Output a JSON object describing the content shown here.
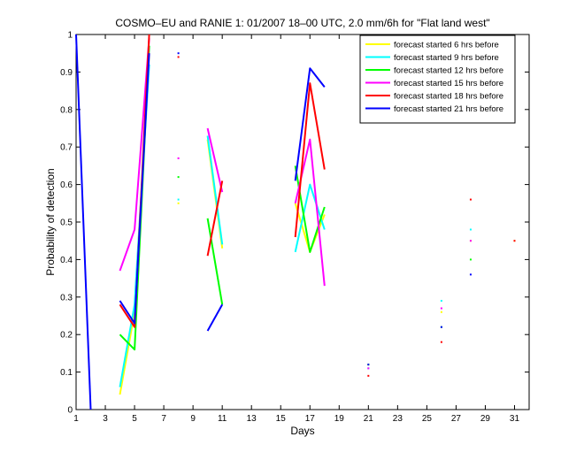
{
  "chart_data": {
    "type": "line",
    "title": "COSMO–EU and RANIE 1: 01/2007 18–00 UTC, 2.0 mm/6h for \"Flat land west\"",
    "xlabel": "Days",
    "ylabel": "Probability of detection",
    "xlim": [
      1,
      32
    ],
    "ylim": [
      0,
      1
    ],
    "x_ticks": [
      1,
      3,
      5,
      7,
      9,
      11,
      13,
      15,
      17,
      19,
      21,
      23,
      25,
      27,
      29,
      31
    ],
    "y_ticks": [
      0,
      0.1,
      0.2,
      0.3,
      0.4,
      0.5,
      0.6,
      0.7,
      0.8,
      0.9,
      1
    ],
    "y_tick_labels": [
      "0",
      "0.1",
      "0.2",
      "0.3",
      "0.4",
      "0.5",
      "0.6",
      "0.7",
      "0.8",
      "0.9",
      "1"
    ],
    "grid": false,
    "legend_position": "top-right",
    "series": [
      {
        "name": "forecast started 6 hrs before",
        "color": "#ffff00",
        "points": [
          [
            4,
            0.04
          ],
          [
            5,
            0.26
          ],
          [
            6,
            0.95
          ],
          null,
          [
            8,
            0.55
          ],
          null,
          [
            10,
            0.72
          ],
          [
            11,
            0.43
          ],
          null,
          [
            16,
            0.55
          ],
          [
            17,
            0.42
          ],
          [
            18,
            0.52
          ],
          null,
          [
            21,
            0.12
          ],
          null,
          [
            26,
            0.26
          ],
          null,
          [
            28,
            0.45
          ],
          null,
          [
            31,
            0.45
          ]
        ]
      },
      {
        "name": "forecast started 9 hrs before",
        "color": "#00ffff",
        "points": [
          [
            4,
            0.06
          ],
          [
            5,
            0.28
          ],
          [
            6,
            0.92
          ],
          null,
          [
            8,
            0.56
          ],
          null,
          [
            10,
            0.73
          ],
          [
            11,
            0.44
          ],
          null,
          [
            16,
            0.42
          ],
          [
            17,
            0.6
          ],
          [
            18,
            0.48
          ],
          null,
          [
            21,
            0.11
          ],
          null,
          [
            26,
            0.29
          ],
          null,
          [
            28,
            0.48
          ]
        ]
      },
      {
        "name": "forecast started 12 hrs before",
        "color": "#00ff00",
        "points": [
          [
            4,
            0.2
          ],
          [
            5,
            0.16
          ],
          [
            6,
            0.97
          ],
          null,
          [
            8,
            0.62
          ],
          null,
          [
            10,
            0.51
          ],
          [
            11,
            0.28
          ],
          null,
          [
            16,
            0.65
          ],
          [
            17,
            0.42
          ],
          [
            18,
            0.54
          ],
          null,
          [
            21,
            0.12
          ],
          null,
          [
            26,
            0.22
          ],
          null,
          [
            28,
            0.4
          ]
        ]
      },
      {
        "name": "forecast started 15 hrs before",
        "color": "#ff00ff",
        "points": [
          [
            4,
            0.37
          ],
          [
            5,
            0.48
          ],
          [
            6,
            0.99
          ],
          null,
          [
            8,
            0.67
          ],
          null,
          [
            10,
            0.75
          ],
          [
            11,
            0.58
          ],
          null,
          [
            16,
            0.55
          ],
          [
            17,
            0.72
          ],
          [
            18,
            0.33
          ],
          null,
          [
            21,
            0.11
          ],
          null,
          [
            26,
            0.27
          ],
          null,
          [
            28,
            0.45
          ]
        ]
      },
      {
        "name": "forecast started 18 hrs before",
        "color": "#ff0000",
        "points": [
          [
            4,
            0.28
          ],
          [
            5,
            0.22
          ],
          [
            6,
            1.0
          ],
          null,
          [
            8,
            0.94
          ],
          null,
          [
            10,
            0.41
          ],
          [
            11,
            0.61
          ],
          null,
          [
            16,
            0.46
          ],
          [
            17,
            0.87
          ],
          [
            18,
            0.64
          ],
          null,
          [
            21,
            0.09
          ],
          null,
          [
            26,
            0.18
          ],
          null,
          [
            28,
            0.56
          ],
          null,
          [
            31,
            0.45
          ]
        ]
      },
      {
        "name": "forecast started 21 hrs before",
        "color": "#0000ff",
        "points": [
          [
            1,
            1.0
          ],
          [
            2,
            0.0
          ],
          null,
          [
            4,
            0.29
          ],
          [
            5,
            0.23
          ],
          [
            6,
            0.95
          ],
          null,
          [
            8,
            0.95
          ],
          null,
          [
            10,
            0.21
          ],
          [
            11,
            0.28
          ],
          null,
          [
            16,
            0.61
          ],
          [
            17,
            0.91
          ],
          [
            18,
            0.86
          ],
          null,
          [
            21,
            0.12
          ],
          null,
          [
            26,
            0.22
          ],
          null,
          [
            28,
            0.36
          ]
        ]
      }
    ]
  }
}
